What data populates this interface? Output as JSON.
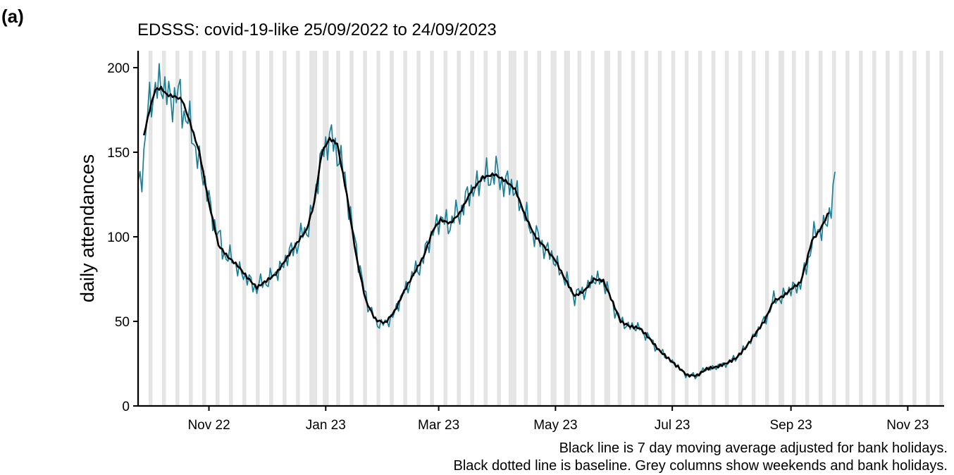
{
  "panel_label": "(a)",
  "chart_data": {
    "type": "line",
    "title": "EDSSS: covid-19-like 25/09/2022 to 24/09/2023",
    "xlabel": "",
    "ylabel": "daily attendances",
    "ylim": [
      0,
      210
    ],
    "xlim": [
      "2022-09-25",
      "2023-11-20"
    ],
    "y_ticks": [
      0,
      50,
      100,
      150,
      200
    ],
    "x_ticks": [
      {
        "date": "2022-11-01",
        "label": "Nov 22"
      },
      {
        "date": "2023-01-01",
        "label": "Jan 23"
      },
      {
        "date": "2023-03-01",
        "label": "Mar 23"
      },
      {
        "date": "2023-05-01",
        "label": "May 23"
      },
      {
        "date": "2023-07-01",
        "label": "Jul 23"
      },
      {
        "date": "2023-09-01",
        "label": "Sep 23"
      },
      {
        "date": "2023-11-01",
        "label": "Nov 23"
      }
    ],
    "grid": false,
    "grey_columns": "weekends and bank holidays",
    "bank_holidays": [
      "2022-12-26",
      "2022-12-27",
      "2023-01-02",
      "2023-04-07",
      "2023-04-10",
      "2023-05-01",
      "2023-05-08",
      "2023-05-29",
      "2023-08-28"
    ],
    "series": [
      {
        "role": "daily",
        "color": "#1b7f96",
        "start": "2022-09-25",
        "end": "2023-09-24",
        "anchors": [
          [
            "2022-09-25",
            128
          ],
          [
            "2022-09-27",
            140
          ],
          [
            "2022-09-30",
            172
          ],
          [
            "2022-10-04",
            190
          ],
          [
            "2022-10-08",
            188
          ],
          [
            "2022-10-12",
            182
          ],
          [
            "2022-10-17",
            182
          ],
          [
            "2022-10-22",
            165
          ],
          [
            "2022-10-28",
            140
          ],
          [
            "2022-11-03",
            112
          ],
          [
            "2022-11-08",
            92
          ],
          [
            "2022-11-14",
            85
          ],
          [
            "2022-11-20",
            76
          ],
          [
            "2022-11-26",
            70
          ],
          [
            "2022-12-01",
            74
          ],
          [
            "2022-12-06",
            78
          ],
          [
            "2022-12-12",
            88
          ],
          [
            "2022-12-18",
            98
          ],
          [
            "2022-12-22",
            104
          ],
          [
            "2022-12-26",
            120
          ],
          [
            "2022-12-30",
            150
          ],
          [
            "2023-01-03",
            158
          ],
          [
            "2023-01-08",
            150
          ],
          [
            "2023-01-13",
            120
          ],
          [
            "2023-01-18",
            85
          ],
          [
            "2023-01-23",
            60
          ],
          [
            "2023-01-27",
            50
          ],
          [
            "2023-02-01",
            48
          ],
          [
            "2023-02-06",
            55
          ],
          [
            "2023-02-11",
            68
          ],
          [
            "2023-02-16",
            78
          ],
          [
            "2023-02-21",
            87
          ],
          [
            "2023-02-26",
            104
          ],
          [
            "2023-03-02",
            110
          ],
          [
            "2023-03-07",
            108
          ],
          [
            "2023-03-12",
            115
          ],
          [
            "2023-03-18",
            127
          ],
          [
            "2023-03-24",
            135
          ],
          [
            "2023-03-30",
            137
          ],
          [
            "2023-04-05",
            132
          ],
          [
            "2023-04-10",
            128
          ],
          [
            "2023-04-15",
            113
          ],
          [
            "2023-04-20",
            101
          ],
          [
            "2023-04-26",
            93
          ],
          [
            "2023-05-01",
            85
          ],
          [
            "2023-05-06",
            75
          ],
          [
            "2023-05-11",
            65
          ],
          [
            "2023-05-16",
            68
          ],
          [
            "2023-05-21",
            75
          ],
          [
            "2023-05-26",
            74
          ],
          [
            "2023-05-31",
            60
          ],
          [
            "2023-06-04",
            50
          ],
          [
            "2023-06-09",
            47
          ],
          [
            "2023-06-14",
            46
          ],
          [
            "2023-06-19",
            40
          ],
          [
            "2023-06-24",
            33
          ],
          [
            "2023-06-29",
            28
          ],
          [
            "2023-07-04",
            23
          ],
          [
            "2023-07-09",
            18
          ],
          [
            "2023-07-14",
            18
          ],
          [
            "2023-07-19",
            22
          ],
          [
            "2023-07-24",
            23
          ],
          [
            "2023-07-29",
            25
          ],
          [
            "2023-08-03",
            28
          ],
          [
            "2023-08-08",
            34
          ],
          [
            "2023-08-13",
            42
          ],
          [
            "2023-08-18",
            50
          ],
          [
            "2023-08-23",
            62
          ],
          [
            "2023-08-28",
            65
          ],
          [
            "2023-09-02",
            70
          ],
          [
            "2023-09-06",
            72
          ],
          [
            "2023-09-09",
            82
          ],
          [
            "2023-09-12",
            98
          ],
          [
            "2023-09-16",
            105
          ],
          [
            "2023-09-20",
            108
          ],
          [
            "2023-09-22",
            118
          ],
          [
            "2023-09-24",
            134
          ]
        ]
      },
      {
        "role": "7 day moving average",
        "color": "#000000",
        "start": "2022-09-28",
        "end": "2023-09-21",
        "anchors": [
          [
            "2022-09-28",
            160
          ],
          [
            "2022-10-01",
            175
          ],
          [
            "2022-10-04",
            187
          ],
          [
            "2022-10-07",
            188
          ],
          [
            "2022-10-10",
            184
          ],
          [
            "2022-10-14",
            183
          ],
          [
            "2022-10-18",
            181
          ],
          [
            "2022-10-22",
            168
          ],
          [
            "2022-10-27",
            150
          ],
          [
            "2022-11-01",
            120
          ],
          [
            "2022-11-06",
            95
          ],
          [
            "2022-11-11",
            88
          ],
          [
            "2022-11-16",
            83
          ],
          [
            "2022-11-21",
            76
          ],
          [
            "2022-11-26",
            70
          ],
          [
            "2022-12-01",
            74
          ],
          [
            "2022-12-06",
            78
          ],
          [
            "2022-12-12",
            88
          ],
          [
            "2022-12-18",
            98
          ],
          [
            "2022-12-22",
            104
          ],
          [
            "2022-12-26",
            120
          ],
          [
            "2022-12-30",
            150
          ],
          [
            "2023-01-03",
            158
          ],
          [
            "2023-01-07",
            155
          ],
          [
            "2023-01-12",
            125
          ],
          [
            "2023-01-17",
            88
          ],
          [
            "2023-01-22",
            62
          ],
          [
            "2023-01-27",
            51
          ],
          [
            "2023-02-01",
            49
          ],
          [
            "2023-02-06",
            56
          ],
          [
            "2023-02-11",
            68
          ],
          [
            "2023-02-16",
            78
          ],
          [
            "2023-02-21",
            88
          ],
          [
            "2023-02-26",
            104
          ],
          [
            "2023-03-02",
            110
          ],
          [
            "2023-03-07",
            108
          ],
          [
            "2023-03-12",
            114
          ],
          [
            "2023-03-18",
            127
          ],
          [
            "2023-03-24",
            135
          ],
          [
            "2023-03-30",
            137
          ],
          [
            "2023-04-05",
            133
          ],
          [
            "2023-04-10",
            128
          ],
          [
            "2023-04-15",
            113
          ],
          [
            "2023-04-20",
            101
          ],
          [
            "2023-04-26",
            93
          ],
          [
            "2023-05-01",
            86
          ],
          [
            "2023-05-06",
            75
          ],
          [
            "2023-05-11",
            65
          ],
          [
            "2023-05-16",
            68
          ],
          [
            "2023-05-21",
            75
          ],
          [
            "2023-05-26",
            74
          ],
          [
            "2023-05-31",
            61
          ],
          [
            "2023-06-04",
            50
          ],
          [
            "2023-06-09",
            47
          ],
          [
            "2023-06-14",
            46
          ],
          [
            "2023-06-19",
            40
          ],
          [
            "2023-06-24",
            33
          ],
          [
            "2023-06-29",
            28
          ],
          [
            "2023-07-04",
            23
          ],
          [
            "2023-07-09",
            18
          ],
          [
            "2023-07-14",
            18
          ],
          [
            "2023-07-19",
            22
          ],
          [
            "2023-07-24",
            23
          ],
          [
            "2023-07-29",
            25
          ],
          [
            "2023-08-03",
            28
          ],
          [
            "2023-08-08",
            34
          ],
          [
            "2023-08-13",
            42
          ],
          [
            "2023-08-18",
            50
          ],
          [
            "2023-08-23",
            62
          ],
          [
            "2023-08-28",
            65
          ],
          [
            "2023-09-02",
            70
          ],
          [
            "2023-09-06",
            73
          ],
          [
            "2023-09-09",
            85
          ],
          [
            "2023-09-12",
            98
          ],
          [
            "2023-09-15",
            102
          ],
          [
            "2023-09-18",
            108
          ],
          [
            "2023-09-21",
            115
          ]
        ]
      }
    ],
    "captions": [
      "Black line is 7 day moving average adjusted for bank holidays.",
      "Black dotted line is baseline. Grey columns show weekends and bank holidays."
    ]
  }
}
